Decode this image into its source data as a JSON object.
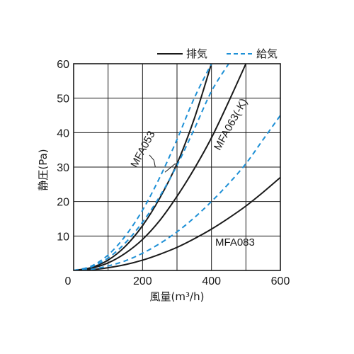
{
  "chart_data": {
    "type": "line",
    "xlabel": "風量(m³/h)",
    "ylabel": "静圧(Pa)",
    "xlim": [
      0,
      600
    ],
    "ylim": [
      0,
      60
    ],
    "x_ticks": [
      "0",
      "200",
      "400",
      "600"
    ],
    "y_ticks": [
      "10",
      "20",
      "30",
      "40",
      "50",
      "60"
    ],
    "grid": true,
    "grid_step_x": 100,
    "grid_step_y": 10,
    "legend": {
      "placement": "top-right",
      "entries": [
        {
          "label": "排気",
          "style": "solid",
          "color": "#1a1a1a"
        },
        {
          "label": "給気",
          "style": "dashed",
          "color": "#1e90d6"
        }
      ]
    },
    "series": [
      {
        "model": "MFA053",
        "kind": "排気",
        "style": "solid",
        "color": "#1a1a1a",
        "x": [
          0,
          50,
          100,
          150,
          200,
          250,
          300,
          350,
          400
        ],
        "y": [
          0,
          0.8,
          3,
          7,
          13,
          21,
          31,
          44,
          60
        ]
      },
      {
        "model": "MFA053",
        "kind": "給気",
        "style": "dashed",
        "color": "#1e90d6",
        "x": [
          0,
          50,
          100,
          150,
          200,
          250,
          300,
          350,
          400
        ],
        "y": [
          0,
          1.2,
          4.5,
          10,
          17.5,
          27,
          38,
          50,
          60
        ]
      },
      {
        "model": "MFA063(-K)",
        "kind": "排気",
        "style": "solid",
        "color": "#1a1a1a",
        "x": [
          0,
          50,
          100,
          150,
          200,
          250,
          300,
          350,
          400,
          450,
          500
        ],
        "y": [
          0,
          0.6,
          2.2,
          5,
          9,
          14.5,
          21.5,
          29.5,
          38.5,
          49,
          60
        ]
      },
      {
        "model": "MFA063(-K)",
        "kind": "給気",
        "style": "dashed",
        "color": "#1e90d6",
        "x": [
          0,
          50,
          100,
          150,
          200,
          250,
          300,
          350,
          400,
          450
        ],
        "y": [
          0,
          1,
          3.6,
          8,
          14,
          21.5,
          30.5,
          41,
          52,
          60
        ]
      },
      {
        "model": "MFA083",
        "kind": "排気",
        "style": "solid",
        "color": "#1a1a1a",
        "x": [
          0,
          50,
          100,
          150,
          200,
          250,
          300,
          350,
          400,
          450,
          500,
          550,
          600
        ],
        "y": [
          0,
          0.2,
          0.8,
          1.7,
          3,
          4.7,
          6.7,
          9.2,
          12,
          15.2,
          18.7,
          22.7,
          27
        ]
      },
      {
        "model": "MFA083",
        "kind": "給気",
        "style": "dashed",
        "color": "#1e90d6",
        "x": [
          0,
          50,
          100,
          150,
          200,
          250,
          300,
          350,
          400,
          450,
          500,
          550,
          600
        ],
        "y": [
          0,
          0.3,
          1.3,
          2.8,
          5,
          7.8,
          11.2,
          15.3,
          20,
          25.2,
          31,
          38,
          45
        ]
      }
    ],
    "annotations": [
      {
        "text": "MFA053"
      },
      {
        "text": "MFA063(-K)"
      },
      {
        "text": "MFA083"
      }
    ]
  }
}
